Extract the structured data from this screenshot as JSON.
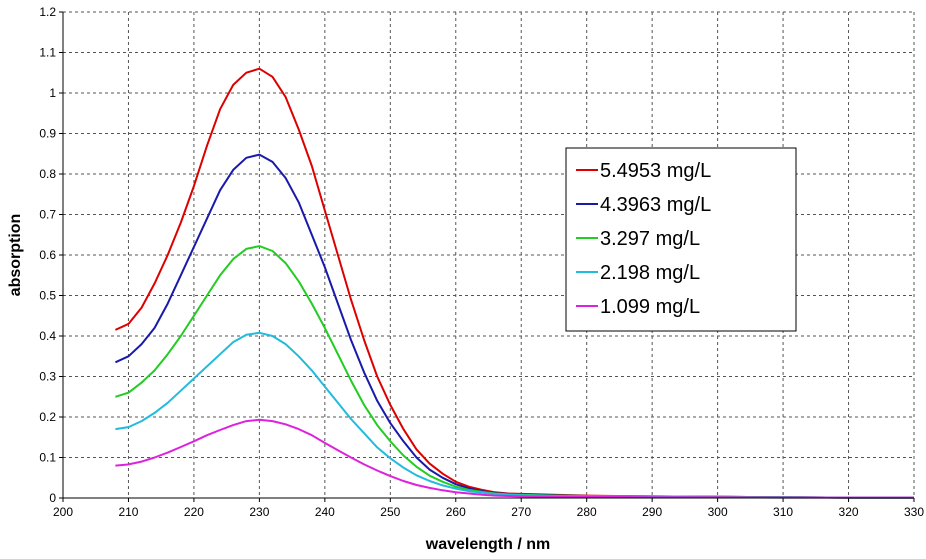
{
  "chart_data": {
    "type": "line",
    "title": "",
    "xlabel": "wavelength / nm",
    "ylabel": "absorption",
    "xlim": [
      200,
      330
    ],
    "ylim": [
      0,
      1.2
    ],
    "x_ticks": [
      200,
      210,
      220,
      230,
      240,
      250,
      260,
      270,
      280,
      290,
      300,
      310,
      320,
      330
    ],
    "y_ticks": [
      0,
      0.1,
      0.2,
      0.3,
      0.4,
      0.5,
      0.6,
      0.7,
      0.8,
      0.9,
      1,
      1.1,
      1.2
    ],
    "grid": true,
    "legend_position": "right",
    "series": [
      {
        "name": "5.4953 mg/L",
        "color": "#dd0000",
        "x": [
          208,
          210,
          212,
          214,
          216,
          218,
          220,
          222,
          224,
          226,
          228,
          230,
          232,
          234,
          236,
          238,
          240,
          242,
          244,
          246,
          248,
          250,
          252,
          254,
          256,
          258,
          260,
          262,
          264,
          266,
          268,
          270,
          275,
          280,
          290,
          300,
          310,
          320,
          330
        ],
        "y": [
          0.415,
          0.43,
          0.47,
          0.53,
          0.6,
          0.68,
          0.77,
          0.87,
          0.96,
          1.02,
          1.05,
          1.06,
          1.04,
          0.99,
          0.91,
          0.82,
          0.71,
          0.6,
          0.49,
          0.39,
          0.3,
          0.23,
          0.17,
          0.12,
          0.085,
          0.06,
          0.04,
          0.028,
          0.02,
          0.014,
          0.011,
          0.01,
          0.008,
          0.006,
          0.004,
          0.003,
          0.002,
          0.001,
          0.001
        ]
      },
      {
        "name": "4.3963 mg/L",
        "color": "#1a1aaa",
        "x": [
          208,
          210,
          212,
          214,
          216,
          218,
          220,
          222,
          224,
          226,
          228,
          230,
          232,
          234,
          236,
          238,
          240,
          242,
          244,
          246,
          248,
          250,
          252,
          254,
          256,
          258,
          260,
          262,
          264,
          266,
          268,
          270,
          275,
          280,
          290,
          300,
          310,
          320,
          330
        ],
        "y": [
          0.335,
          0.35,
          0.38,
          0.42,
          0.48,
          0.55,
          0.62,
          0.69,
          0.76,
          0.81,
          0.84,
          0.848,
          0.83,
          0.79,
          0.73,
          0.65,
          0.57,
          0.48,
          0.39,
          0.31,
          0.24,
          0.185,
          0.14,
          0.1,
          0.07,
          0.05,
          0.034,
          0.024,
          0.017,
          0.012,
          0.01,
          0.009,
          0.007,
          0.005,
          0.004,
          0.003,
          0.002,
          0.001,
          0.001
        ]
      },
      {
        "name": "3.297 mg/L",
        "color": "#22cc22",
        "x": [
          208,
          210,
          212,
          214,
          216,
          218,
          220,
          222,
          224,
          226,
          228,
          230,
          232,
          234,
          236,
          238,
          240,
          242,
          244,
          246,
          248,
          250,
          252,
          254,
          256,
          258,
          260,
          262,
          264,
          266,
          268,
          270,
          275,
          280,
          290,
          300,
          310,
          320,
          330
        ],
        "y": [
          0.25,
          0.26,
          0.285,
          0.315,
          0.355,
          0.4,
          0.45,
          0.5,
          0.55,
          0.59,
          0.615,
          0.622,
          0.61,
          0.58,
          0.535,
          0.48,
          0.42,
          0.355,
          0.29,
          0.23,
          0.18,
          0.14,
          0.105,
          0.077,
          0.055,
          0.04,
          0.028,
          0.02,
          0.015,
          0.011,
          0.009,
          0.008,
          0.006,
          0.005,
          0.004,
          0.003,
          0.002,
          0.001,
          0.001
        ]
      },
      {
        "name": "2.198 mg/L",
        "color": "#22bbdd",
        "x": [
          208,
          210,
          212,
          214,
          216,
          218,
          220,
          222,
          224,
          226,
          228,
          230,
          232,
          234,
          236,
          238,
          240,
          242,
          244,
          246,
          248,
          250,
          252,
          254,
          256,
          258,
          260,
          262,
          264,
          266,
          268,
          270,
          275,
          280,
          290,
          300,
          310,
          320,
          330
        ],
        "y": [
          0.17,
          0.175,
          0.19,
          0.21,
          0.235,
          0.265,
          0.295,
          0.325,
          0.355,
          0.385,
          0.403,
          0.408,
          0.4,
          0.38,
          0.35,
          0.315,
          0.275,
          0.235,
          0.195,
          0.16,
          0.125,
          0.098,
          0.075,
          0.056,
          0.042,
          0.031,
          0.023,
          0.017,
          0.013,
          0.01,
          0.008,
          0.007,
          0.005,
          0.004,
          0.003,
          0.002,
          0.002,
          0.001,
          0.001
        ]
      },
      {
        "name": "1.099 mg/L",
        "color": "#dd22dd",
        "x": [
          208,
          210,
          212,
          214,
          216,
          218,
          220,
          222,
          224,
          226,
          228,
          230,
          232,
          234,
          236,
          238,
          240,
          242,
          244,
          246,
          248,
          250,
          252,
          254,
          256,
          258,
          260,
          262,
          264,
          266,
          268,
          270,
          275,
          280,
          290,
          300,
          310,
          320,
          330
        ],
        "y": [
          0.08,
          0.083,
          0.09,
          0.1,
          0.112,
          0.126,
          0.14,
          0.155,
          0.168,
          0.18,
          0.19,
          0.193,
          0.19,
          0.182,
          0.17,
          0.155,
          0.136,
          0.118,
          0.1,
          0.083,
          0.068,
          0.054,
          0.042,
          0.032,
          0.025,
          0.019,
          0.014,
          0.011,
          0.008,
          0.006,
          0.005,
          0.004,
          0.003,
          0.003,
          0.002,
          0.002,
          0.001,
          0.001,
          0.001
        ]
      }
    ]
  }
}
